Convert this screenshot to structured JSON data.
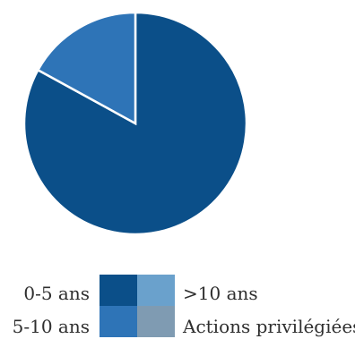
{
  "chart_data": {
    "type": "pie",
    "title": "",
    "slices": [
      {
        "label": "0-5 ans",
        "value": 83,
        "color": "#0b4f89"
      },
      {
        "label": "5-10 ans",
        "value": 17,
        "color": "#2e74b7"
      },
      {
        "label": ">10 ans",
        "value": 0,
        "color": "#6aa1cc"
      },
      {
        "label": "Actions privilégiées",
        "value": 0,
        "color": "#7f9bb2"
      }
    ],
    "start_angle_deg": 0,
    "direction": "clockwise",
    "slice_border_color": "#ffffff",
    "legend_placement": "bottom"
  },
  "legend": {
    "items": [
      {
        "label": "0-5 ans",
        "color": "#0b4f89"
      },
      {
        "label": ">10 ans",
        "color": "#6aa1cc"
      },
      {
        "label": "5-10 ans",
        "color": "#2e74b7"
      },
      {
        "label": "Actions privilégiées",
        "color": "#7f9bb2"
      }
    ]
  }
}
